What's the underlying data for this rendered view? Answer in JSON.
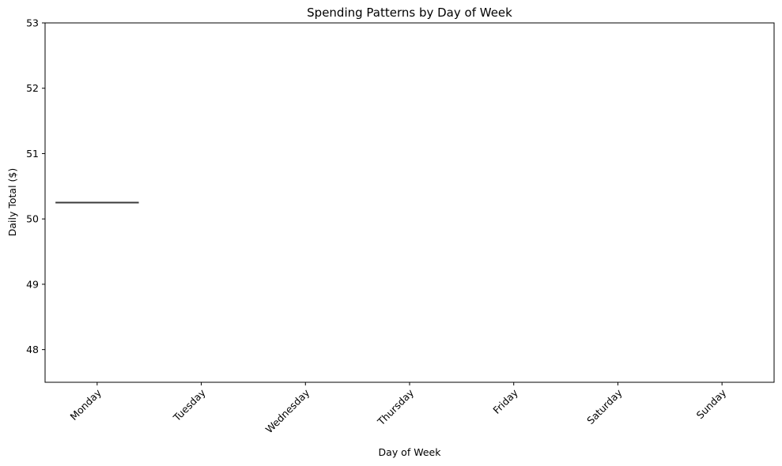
{
  "chart_data": {
    "type": "box",
    "title": "Spending Patterns by Day of Week",
    "xlabel": "Day of Week",
    "ylabel": "Daily Total ($)",
    "categories": [
      "Monday",
      "Tuesday",
      "Wednesday",
      "Thursday",
      "Friday",
      "Saturday",
      "Sunday"
    ],
    "yticks": [
      "48",
      "49",
      "50",
      "51",
      "52",
      "53"
    ],
    "ylim": [
      47.5,
      53.0
    ],
    "grid": false,
    "series": [
      {
        "values": [
          50.25,
          null,
          null,
          null,
          null,
          null,
          null
        ]
      }
    ],
    "colors": {
      "median_line": "#3a3a3a",
      "axis": "#000000"
    }
  }
}
